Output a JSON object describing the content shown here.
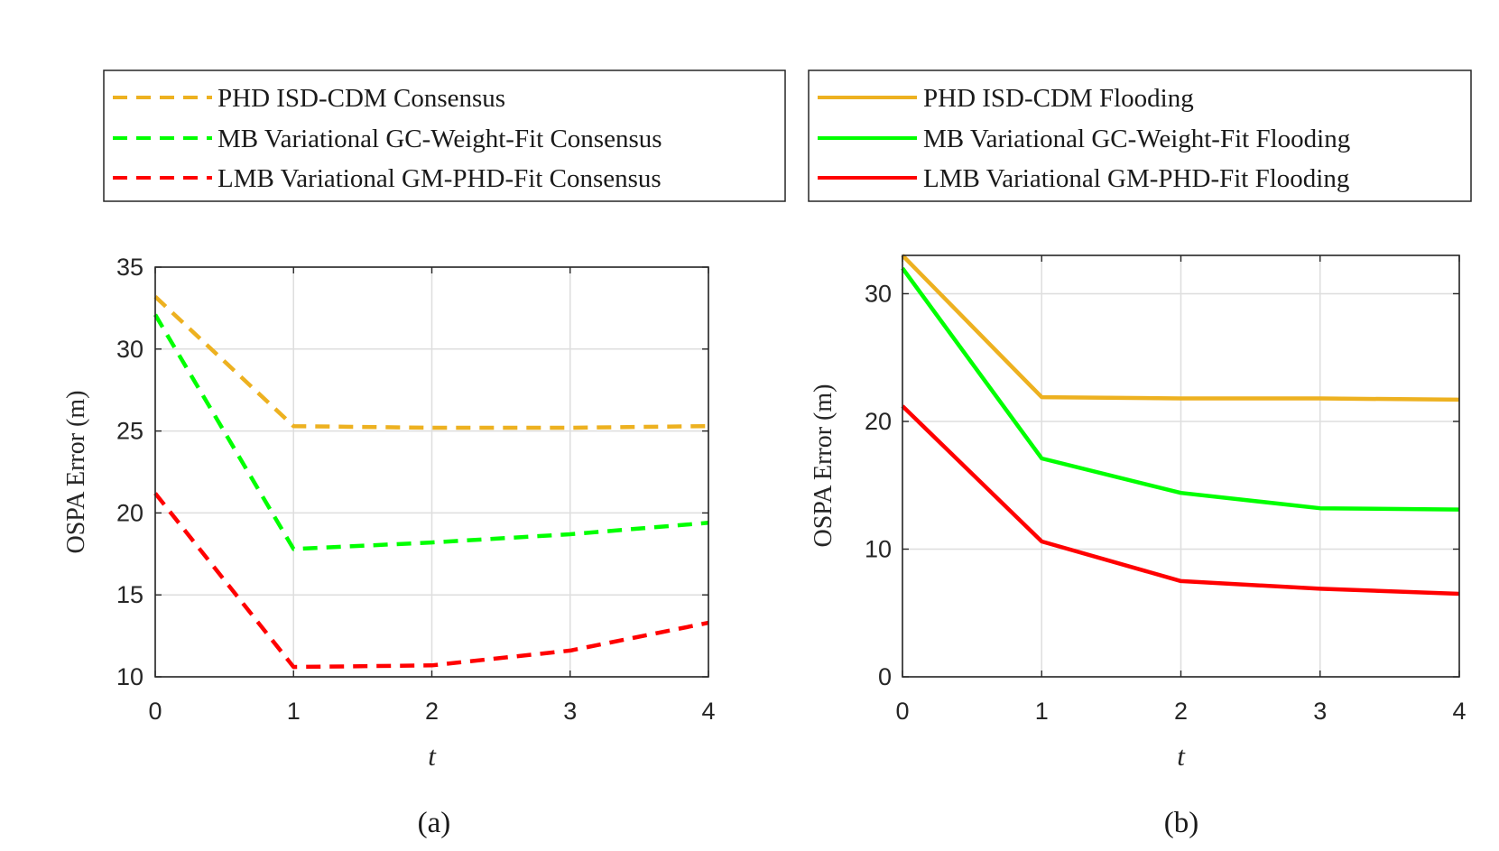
{
  "colors": {
    "phd": "#EDB120",
    "mb": "#00FF00",
    "lmb": "#FF0000",
    "grid": "#dedede",
    "axis": "#262626"
  },
  "chart_data": [
    {
      "type": "line",
      "caption": "(a)",
      "xlabel": "t",
      "ylabel": "OSPA Error (m)",
      "xlim": [
        0,
        4
      ],
      "ylim": [
        10,
        35
      ],
      "xticks": [
        "0",
        "1",
        "2",
        "3",
        "4"
      ],
      "yticks": [
        "10",
        "15",
        "20",
        "25",
        "30",
        "35"
      ],
      "grid": true,
      "legend_position": "top-left",
      "x": [
        0,
        1,
        2,
        3,
        4
      ],
      "series": [
        {
          "name": "PHD ISD-CDM Consensus",
          "values": [
            33.2,
            25.3,
            25.2,
            25.2,
            25.3
          ],
          "style": "dashed",
          "color": "#EDB120"
        },
        {
          "name": "MB Variational GC-Weight-Fit Consensus",
          "values": [
            32.1,
            17.8,
            18.2,
            18.7,
            19.4
          ],
          "style": "dashed",
          "color": "#00FF00"
        },
        {
          "name": "LMB Variational GM-PHD-Fit Consensus",
          "values": [
            21.2,
            10.6,
            10.7,
            11.6,
            13.3
          ],
          "style": "dashed",
          "color": "#FF0000"
        }
      ]
    },
    {
      "type": "line",
      "caption": "(b)",
      "xlabel": "t",
      "ylabel": "OSPA Error (m)",
      "xlim": [
        0,
        4
      ],
      "ylim": [
        0,
        33
      ],
      "xticks": [
        "0",
        "1",
        "2",
        "3",
        "4"
      ],
      "yticks": [
        "0",
        "10",
        "20",
        "30"
      ],
      "grid": true,
      "legend_position": "top-right",
      "x": [
        0,
        1,
        2,
        3,
        4
      ],
      "series": [
        {
          "name": "PHD ISD-CDM Flooding",
          "values": [
            33.0,
            21.9,
            21.8,
            21.8,
            21.7
          ],
          "style": "solid",
          "color": "#EDB120"
        },
        {
          "name": "MB Variational GC-Weight-Fit Flooding",
          "values": [
            32.0,
            17.1,
            14.4,
            13.2,
            13.1
          ],
          "style": "solid",
          "color": "#00FF00"
        },
        {
          "name": "LMB Variational GM-PHD-Fit Flooding",
          "values": [
            21.2,
            10.6,
            7.5,
            6.9,
            6.5
          ],
          "style": "solid",
          "color": "#FF0000"
        }
      ]
    }
  ]
}
